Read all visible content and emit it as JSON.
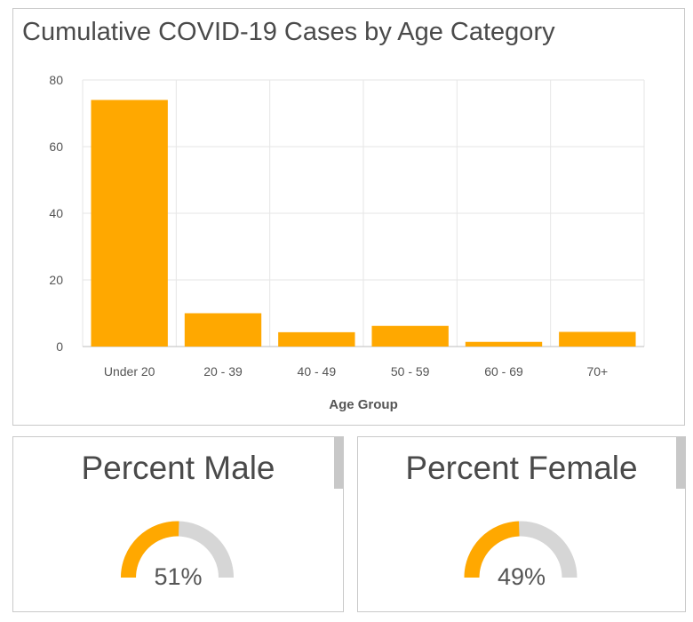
{
  "chart_data": {
    "type": "bar",
    "title": "Cumulative COVID-19 Cases by Age Category",
    "xlabel": "Age Group",
    "ylabel": "",
    "categories": [
      "Under 20",
      "20 - 39",
      "40 - 49",
      "50 - 59",
      "60 - 69",
      "70+"
    ],
    "values": [
      74,
      10,
      4.3,
      6.2,
      1.4,
      4.4
    ],
    "ylim": [
      0,
      80
    ],
    "yticks": [
      0,
      20,
      40,
      60,
      80
    ],
    "grid": true,
    "bar_color": "#FFA800"
  },
  "gauges": [
    {
      "title": "Percent Male",
      "value": 51,
      "label": "51%",
      "color": "#FFA800",
      "track_color": "#D6D6D6"
    },
    {
      "title": "Percent Female",
      "value": 49,
      "label": "49%",
      "color": "#FFA800",
      "track_color": "#D6D6D6"
    }
  ]
}
